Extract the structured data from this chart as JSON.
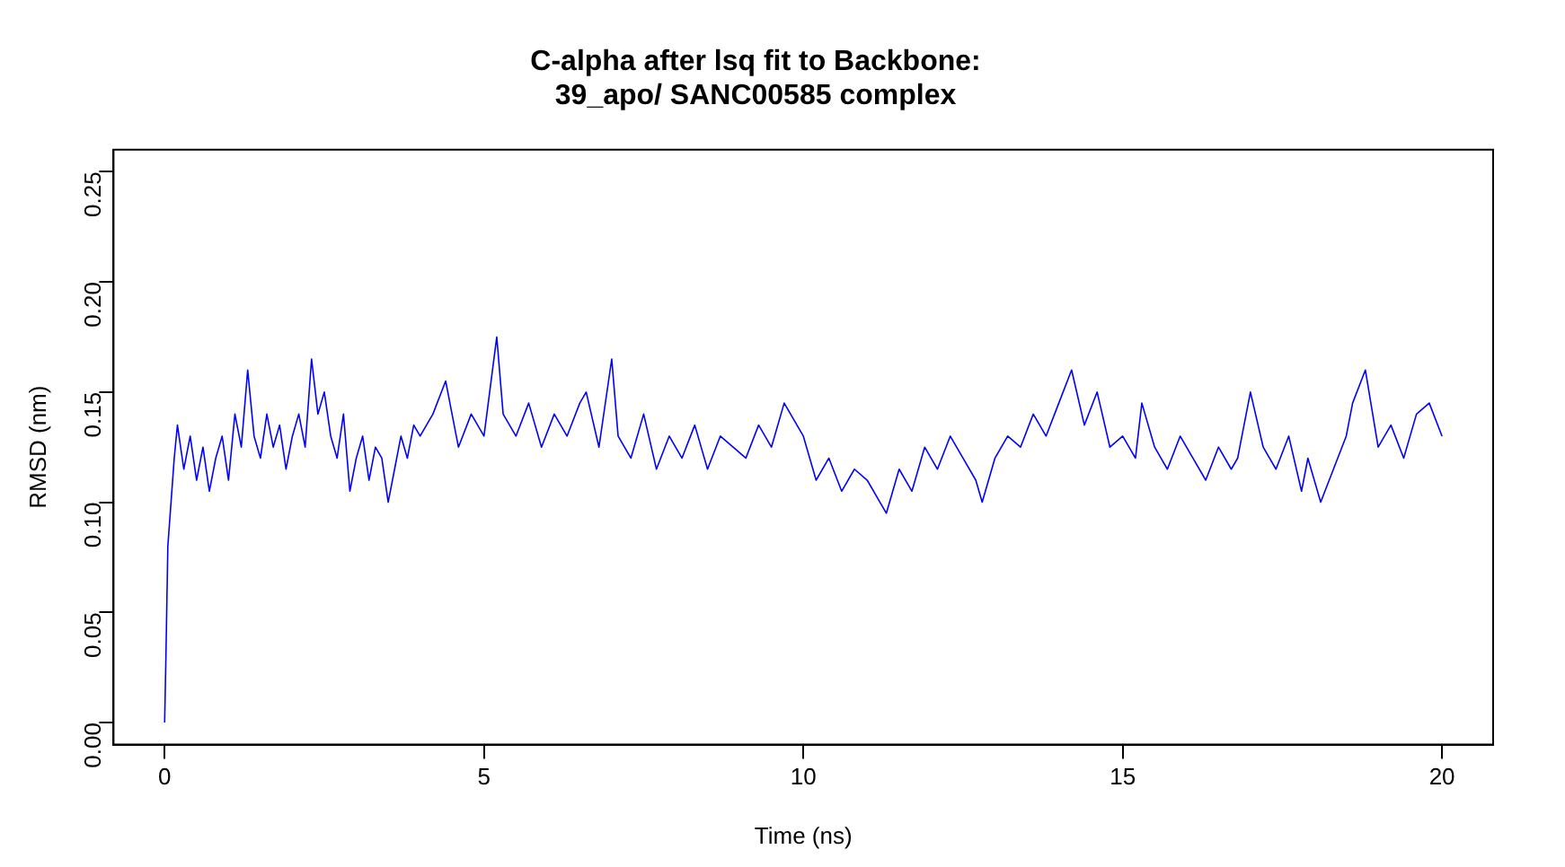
{
  "chart_data": {
    "type": "line",
    "title": "C-alpha after lsq fit to Backbone:\n39_apo/ SANC00585 complex",
    "xlabel": "Time (ns)",
    "ylabel": "RMSD (nm)",
    "xlim": [
      -0.8,
      20.8
    ],
    "xticks": [
      0,
      5,
      10,
      15,
      20
    ],
    "ylim": [
      -0.01,
      0.26
    ],
    "yticks": [
      {
        "value": 0,
        "label": "0.00"
      },
      {
        "value": 0.05,
        "label": "0.05"
      },
      {
        "value": 0.1,
        "label": "0.10"
      },
      {
        "value": 0.15,
        "label": "0.15"
      },
      {
        "value": 0.2,
        "label": "0.20"
      },
      {
        "value": 0.25,
        "label": "0.25"
      }
    ],
    "grid": false,
    "legend": false,
    "marker": "none",
    "line_style": "solid",
    "series": [
      {
        "color": "#0000ff",
        "x": [
          0,
          0.02,
          0.05,
          0.1,
          0.15,
          0.2,
          0.3,
          0.4,
          0.5,
          0.6,
          0.7,
          0.8,
          0.9,
          1.0,
          1.1,
          1.2,
          1.3,
          1.4,
          1.5,
          1.6,
          1.7,
          1.8,
          1.9,
          2.0,
          2.1,
          2.2,
          2.3,
          2.4,
          2.5,
          2.6,
          2.7,
          2.8,
          2.9,
          3.0,
          3.1,
          3.2,
          3.3,
          3.4,
          3.5,
          3.6,
          3.7,
          3.8,
          3.9,
          4.0,
          4.2,
          4.4,
          4.6,
          4.8,
          5.0,
          5.2,
          5.3,
          5.5,
          5.7,
          5.9,
          6.1,
          6.3,
          6.5,
          6.6,
          6.8,
          7.0,
          7.1,
          7.3,
          7.5,
          7.7,
          7.9,
          8.1,
          8.3,
          8.5,
          8.7,
          8.9,
          9.1,
          9.3,
          9.5,
          9.7,
          9.8,
          10.0,
          10.2,
          10.4,
          10.6,
          10.8,
          11.0,
          11.2,
          11.3,
          11.5,
          11.7,
          11.9,
          12.1,
          12.3,
          12.5,
          12.7,
          12.8,
          13.0,
          13.2,
          13.4,
          13.6,
          13.8,
          14.0,
          14.2,
          14.4,
          14.6,
          14.8,
          15.0,
          15.2,
          15.3,
          15.5,
          15.7,
          15.9,
          16.1,
          16.3,
          16.5,
          16.7,
          16.8,
          17.0,
          17.2,
          17.4,
          17.6,
          17.8,
          17.9,
          18.1,
          18.3,
          18.5,
          18.6,
          18.8,
          19.0,
          19.2,
          19.4,
          19.6,
          19.8,
          20.0
        ],
        "values": [
          0.0,
          0.03,
          0.08,
          0.1,
          0.12,
          0.135,
          0.115,
          0.13,
          0.11,
          0.125,
          0.105,
          0.12,
          0.13,
          0.11,
          0.14,
          0.125,
          0.16,
          0.13,
          0.12,
          0.14,
          0.125,
          0.135,
          0.115,
          0.13,
          0.14,
          0.125,
          0.165,
          0.14,
          0.15,
          0.13,
          0.12,
          0.14,
          0.105,
          0.12,
          0.13,
          0.11,
          0.125,
          0.12,
          0.1,
          0.115,
          0.13,
          0.12,
          0.135,
          0.13,
          0.14,
          0.155,
          0.125,
          0.14,
          0.13,
          0.175,
          0.14,
          0.13,
          0.145,
          0.125,
          0.14,
          0.13,
          0.145,
          0.15,
          0.125,
          0.165,
          0.13,
          0.12,
          0.14,
          0.115,
          0.13,
          0.12,
          0.135,
          0.115,
          0.13,
          0.125,
          0.12,
          0.135,
          0.125,
          0.145,
          0.14,
          0.13,
          0.11,
          0.12,
          0.105,
          0.115,
          0.11,
          0.1,
          0.095,
          0.115,
          0.105,
          0.125,
          0.115,
          0.13,
          0.12,
          0.11,
          0.1,
          0.12,
          0.13,
          0.125,
          0.14,
          0.13,
          0.145,
          0.16,
          0.135,
          0.15,
          0.125,
          0.13,
          0.12,
          0.145,
          0.125,
          0.115,
          0.13,
          0.12,
          0.11,
          0.125,
          0.115,
          0.12,
          0.15,
          0.125,
          0.115,
          0.13,
          0.105,
          0.12,
          0.1,
          0.115,
          0.13,
          0.145,
          0.16,
          0.125,
          0.135,
          0.12,
          0.14,
          0.145,
          0.13
        ]
      }
    ]
  }
}
